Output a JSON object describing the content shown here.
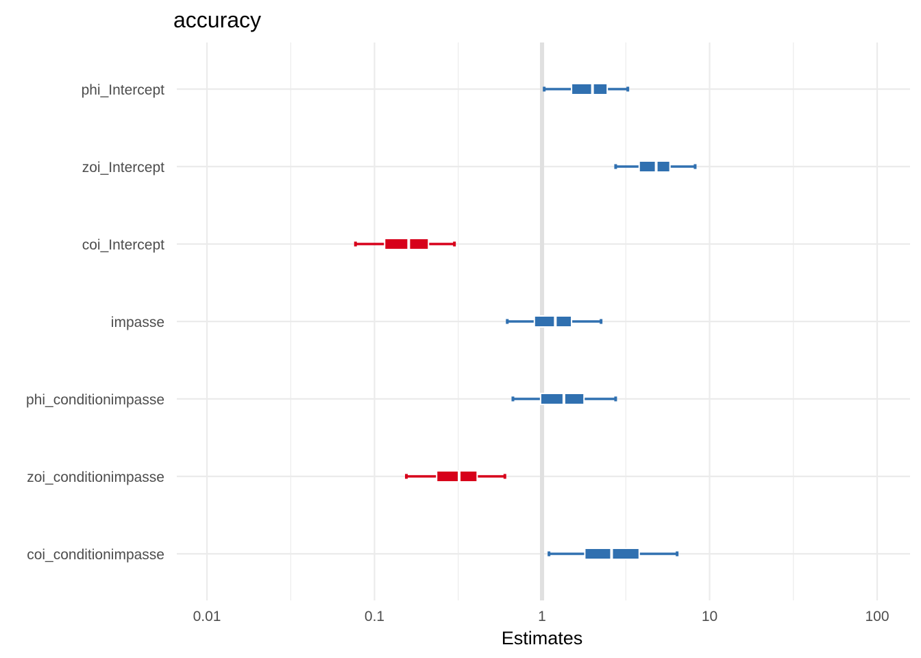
{
  "chart_data": {
    "type": "forest",
    "title": "accuracy",
    "xlabel": "Estimates",
    "x_scale": "log10",
    "xlim": [
      0.005,
      150
    ],
    "x_ticks": [
      0.01,
      0.1,
      1,
      10,
      100
    ],
    "x_tick_labels": [
      "0.01",
      "0.1",
      "1",
      "10",
      "100"
    ],
    "reference_line": 1,
    "grid": true,
    "colors": {
      "positive": "#3070b0",
      "negative": "#d7001a",
      "grid": "#ebebeb",
      "reference": "#e0e0e0"
    },
    "terms": [
      {
        "label": "phi_Intercept",
        "estimate": 2.0,
        "inner": [
          1.5,
          2.45
        ],
        "outer": [
          1.03,
          3.25
        ],
        "color": "positive"
      },
      {
        "label": "zoi_Intercept",
        "estimate": 4.8,
        "inner": [
          3.8,
          5.8
        ],
        "outer": [
          2.75,
          8.2
        ],
        "color": "positive"
      },
      {
        "label": "coi_Intercept",
        "estimate": 0.16,
        "inner": [
          0.115,
          0.21
        ],
        "outer": [
          0.077,
          0.3
        ],
        "color": "negative"
      },
      {
        "label": "impasse",
        "estimate": 1.2,
        "inner": [
          0.9,
          1.5
        ],
        "outer": [
          0.62,
          2.25
        ],
        "color": "positive"
      },
      {
        "label": "phi_conditionimpasse",
        "estimate": 1.35,
        "inner": [
          0.98,
          1.78
        ],
        "outer": [
          0.67,
          2.75
        ],
        "color": "positive"
      },
      {
        "label": "zoi_conditionimpasse",
        "estimate": 0.32,
        "inner": [
          0.235,
          0.41
        ],
        "outer": [
          0.155,
          0.6
        ],
        "color": "negative"
      },
      {
        "label": "coi_conditionimpasse",
        "estimate": 2.6,
        "inner": [
          1.8,
          3.8
        ],
        "outer": [
          1.1,
          6.4
        ],
        "color": "positive"
      }
    ]
  }
}
